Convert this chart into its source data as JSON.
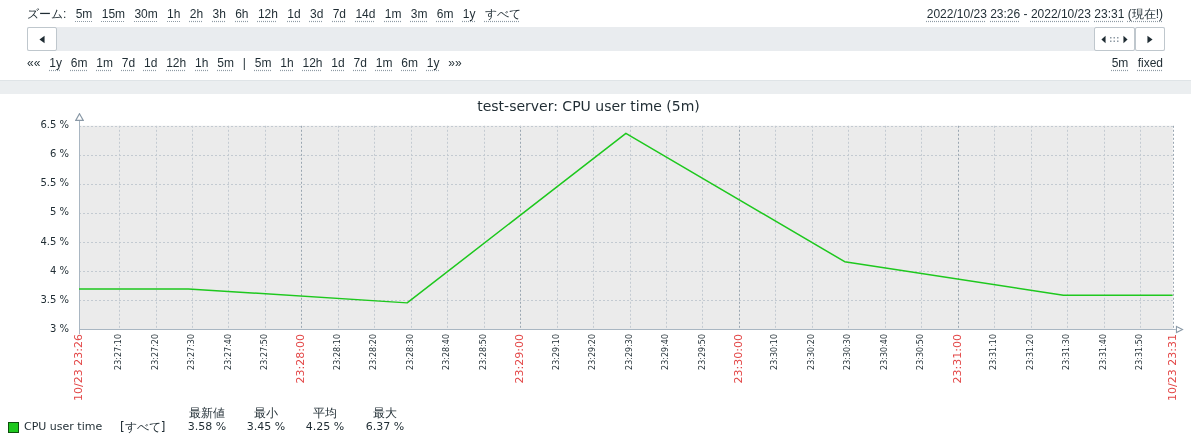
{
  "chart_data": {
    "type": "line",
    "title": "test-server: CPU user time (5m)",
    "x": [
      "2022-10-23T23:26:59",
      "2022-10-23T23:27:29",
      "2022-10-23T23:28:29",
      "2022-10-23T23:29:29",
      "2022-10-23T23:30:29",
      "2022-10-23T23:31:29",
      "2022-10-23T23:31:59"
    ],
    "series": [
      {
        "name": "CPU user time",
        "color": "#1ec81e",
        "values": [
          3.69,
          3.69,
          3.45,
          6.37,
          4.16,
          3.58,
          3.58
        ]
      }
    ],
    "xlim": [
      "2022-10-23T23:26:59",
      "2022-10-23T23:31:59"
    ],
    "xticks": [
      {
        "value": "2022-10-23T23:26:59",
        "label": "10/23 23:26"
      },
      {
        "value": "2022-10-23T23:27:10",
        "label": "23:27:10"
      },
      {
        "value": "2022-10-23T23:27:20",
        "label": "23:27:20"
      },
      {
        "value": "2022-10-23T23:27:30",
        "label": "23:27:30"
      },
      {
        "value": "2022-10-23T23:27:40",
        "label": "23:27:40"
      },
      {
        "value": "2022-10-23T23:27:50",
        "label": "23:27:50"
      },
      {
        "value": "2022-10-23T23:28:00",
        "label": "23:28:00"
      },
      {
        "value": "2022-10-23T23:28:10",
        "label": "23:28:10"
      },
      {
        "value": "2022-10-23T23:28:20",
        "label": "23:28:20"
      },
      {
        "value": "2022-10-23T23:28:30",
        "label": "23:28:30"
      },
      {
        "value": "2022-10-23T23:28:40",
        "label": "23:28:40"
      },
      {
        "value": "2022-10-23T23:28:50",
        "label": "23:28:50"
      },
      {
        "value": "2022-10-23T23:29:00",
        "label": "23:29:00"
      },
      {
        "value": "2022-10-23T23:29:10",
        "label": "23:29:10"
      },
      {
        "value": "2022-10-23T23:29:20",
        "label": "23:29:20"
      },
      {
        "value": "2022-10-23T23:29:30",
        "label": "23:29:30"
      },
      {
        "value": "2022-10-23T23:29:40",
        "label": "23:29:40"
      },
      {
        "value": "2022-10-23T23:29:50",
        "label": "23:29:50"
      },
      {
        "value": "2022-10-23T23:30:00",
        "label": "23:30:00"
      },
      {
        "value": "2022-10-23T23:30:10",
        "label": "23:30:10"
      },
      {
        "value": "2022-10-23T23:30:20",
        "label": "23:30:20"
      },
      {
        "value": "2022-10-23T23:30:30",
        "label": "23:30:30"
      },
      {
        "value": "2022-10-23T23:30:40",
        "label": "23:30:40"
      },
      {
        "value": "2022-10-23T23:30:50",
        "label": "23:30:50"
      },
      {
        "value": "2022-10-23T23:31:00",
        "label": "23:31:00"
      },
      {
        "value": "2022-10-23T23:31:10",
        "label": "23:31:10"
      },
      {
        "value": "2022-10-23T23:31:20",
        "label": "23:31:20"
      },
      {
        "value": "2022-10-23T23:31:30",
        "label": "23:31:30"
      },
      {
        "value": "2022-10-23T23:31:40",
        "label": "23:31:40"
      },
      {
        "value": "2022-10-23T23:31:50",
        "label": "23:31:50"
      },
      {
        "value": "2022-10-23T23:31:59",
        "label": "10/23 23:31"
      }
    ],
    "ylim": [
      3,
      6.5
    ],
    "yticks": [
      {
        "value": 3,
        "label": "3 %"
      },
      {
        "value": 3.5,
        "label": "3.5 %"
      },
      {
        "value": 4,
        "label": "4 %"
      },
      {
        "value": 4.5,
        "label": "4.5 %"
      },
      {
        "value": 5,
        "label": "5 %"
      },
      {
        "value": 5.5,
        "label": "5.5 %"
      },
      {
        "value": 6,
        "label": "6 %"
      },
      {
        "value": 6.5,
        "label": "6.5 %"
      }
    ],
    "grid": true,
    "legend": "bottom left",
    "marker": "none",
    "annotations": [
      "ズーム: 5m 15m 30m 1h 2h 3h 6h 12h 1d 3d 7d 14d 1m 3m 6m 1y すべて",
      "2022/10/23 23:26 - 2022/10/23 23:31 (現在!)",
      "«« 1y 6m 1m 7d 1d 12h 1h 5m | 5m 1h 12h 1d 7d 1m 6m 1y »»",
      "5m fixed",
      "[すべて]",
      "最新値",
      "最小",
      "平均",
      "最大",
      "3.58 %",
      "3.45 %",
      "4.25 %",
      "6.37 %"
    ]
  }
}
